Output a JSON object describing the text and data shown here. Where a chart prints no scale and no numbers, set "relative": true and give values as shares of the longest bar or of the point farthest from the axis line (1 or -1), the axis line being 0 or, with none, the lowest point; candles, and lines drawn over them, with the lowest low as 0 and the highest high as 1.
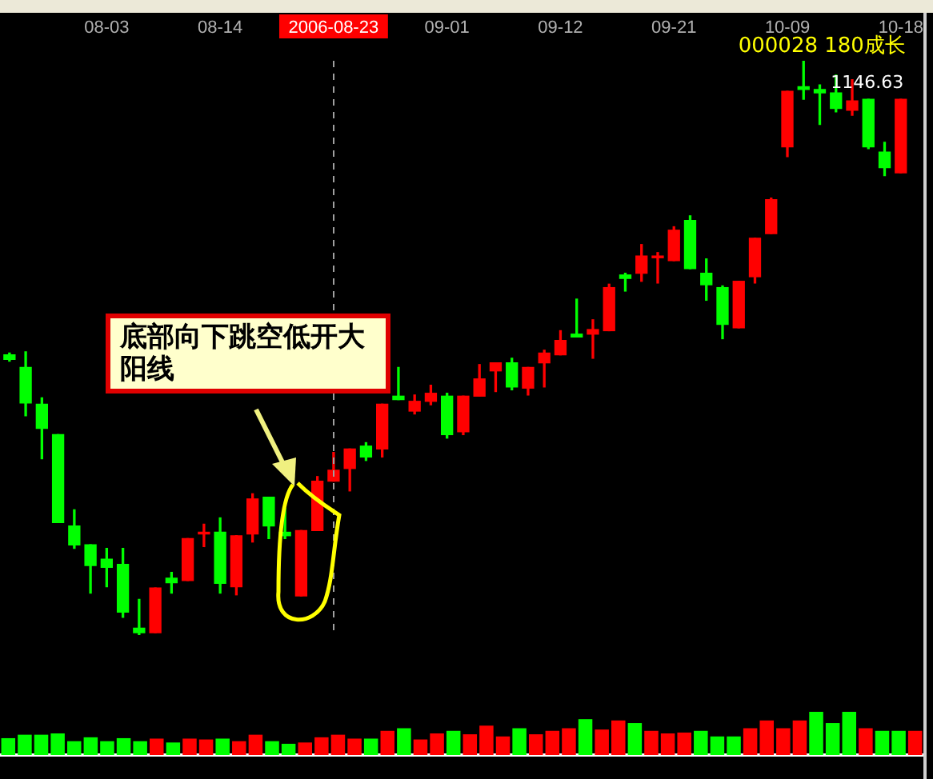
{
  "chart_data": [
    {
      "type": "candlestick",
      "title": "000028 180成长",
      "relative": true,
      "categories": [
        null,
        null,
        null,
        null,
        null,
        null,
        "08-03",
        null,
        null,
        null,
        null,
        null,
        null,
        "08-14",
        null,
        null,
        null,
        null,
        null,
        null,
        "2006-08-23",
        null,
        null,
        null,
        null,
        null,
        null,
        "09-01",
        null,
        null,
        null,
        null,
        null,
        null,
        "09-12",
        null,
        null,
        null,
        null,
        null,
        null,
        "09-21",
        null,
        null,
        null,
        null,
        null,
        null,
        "10-09",
        null,
        null,
        null,
        null,
        null,
        null,
        "10-18"
      ],
      "ohlc": [
        [
          0.488,
          0.491,
          0.477,
          0.48
        ],
        [
          0.466,
          0.493,
          0.382,
          0.404
        ],
        [
          0.402,
          0.413,
          0.307,
          0.36
        ],
        [
          0.349,
          0.349,
          0.196,
          0.196
        ],
        [
          0.19,
          0.218,
          0.151,
          0.157
        ],
        [
          0.157,
          0.157,
          0.073,
          0.121
        ],
        [
          0.132,
          0.151,
          0.084,
          0.118
        ],
        [
          0.123,
          0.151,
          0.031,
          0.04
        ],
        [
          0.012,
          0.062,
          0,
          0.004
        ],
        [
          0.004,
          0.082,
          0.004,
          0.082
        ],
        [
          0.099,
          0.109,
          0.073,
          0.091
        ],
        [
          0.095,
          0.168,
          0.095,
          0.168
        ],
        [
          0.176,
          0.193,
          0.154,
          0.179
        ],
        [
          0.179,
          0.204,
          0.073,
          0.09
        ],
        [
          0.084,
          0.173,
          0.07,
          0.173
        ],
        [
          0.176,
          0.246,
          0.162,
          0.237
        ],
        [
          0.24,
          0.24,
          0.168,
          0.19
        ],
        [
          0.179,
          0.221,
          0.168,
          0.173
        ],
        [
          0.068,
          0.182,
          0.068,
          0.182
        ],
        [
          0.182,
          0.276,
          0.182,
          0.268
        ],
        [
          0.268,
          0.318,
          0.268,
          0.287
        ],
        [
          0.29,
          0.324,
          0.251,
          0.324
        ],
        [
          0.329,
          0.335,
          0.304,
          0.31
        ],
        [
          0.324,
          0.402,
          0.31,
          0.402
        ],
        [
          0.416,
          0.466,
          0.41,
          0.41
        ],
        [
          0.39,
          0.418,
          0.385,
          0.407
        ],
        [
          0.407,
          0.435,
          0.401,
          0.421
        ],
        [
          0.416,
          0.421,
          0.343,
          0.349
        ],
        [
          0.354,
          0.416,
          0.349,
          0.416
        ],
        [
          0.416,
          0.471,
          0.416,
          0.446
        ],
        [
          0.46,
          0.474,
          0.424,
          0.474
        ],
        [
          0.474,
          0.482,
          0.427,
          0.432
        ],
        [
          0.43,
          0.466,
          0.418,
          0.466
        ],
        [
          0.474,
          0.496,
          0.432,
          0.491
        ],
        [
          0.488,
          0.53,
          0.488,
          0.513
        ],
        [
          0.524,
          0.585,
          0.519,
          0.519
        ],
        [
          0.524,
          0.549,
          0.482,
          0.532
        ],
        [
          0.53,
          0.611,
          0.53,
          0.605
        ],
        [
          0.627,
          0.63,
          0.599,
          0.621
        ],
        [
          0.63,
          0.68,
          0.616,
          0.66
        ],
        [
          0.657,
          0.666,
          0.613,
          0.66
        ],
        [
          0.652,
          0.711,
          0.652,
          0.705
        ],
        [
          0.722,
          0.73,
          0.638,
          0.638
        ],
        [
          0.63,
          0.655,
          0.583,
          0.61
        ],
        [
          0.605,
          0.608,
          0.516,
          0.541
        ],
        [
          0.535,
          0.616,
          0.535,
          0.616
        ],
        [
          0.624,
          0.691,
          0.613,
          0.691
        ],
        [
          0.699,
          0.761,
          0.699,
          0.758
        ],
        [
          0.85,
          0.947,
          0.833,
          0.947
        ],
        [
          0.955,
          1,
          0.933,
          0.95
        ],
        [
          0.95,
          0.958,
          0.889,
          0.944
        ],
        [
          0.944,
          0.975,
          0.911,
          0.917
        ],
        [
          0.914,
          0.967,
          0.905,
          0.93
        ],
        [
          0.933,
          0.933,
          0.847,
          0.85
        ],
        [
          0.841,
          0.858,
          0.8,
          0.814
        ],
        [
          0.805,
          0.933,
          0.805,
          0.933
        ]
      ],
      "colors": [
        "#00ff00",
        "#00ff00",
        "#00ff00",
        "#00ff00",
        "#00ff00",
        "#00ff00",
        "#00ff00",
        "#00ff00",
        "#00ff00",
        "#ff0000",
        "#00ff00",
        "#ff0000",
        "#ff0000",
        "#00ff00",
        "#ff0000",
        "#ff0000",
        "#00ff00",
        "#00ff00",
        "#ff0000",
        "#ff0000",
        "#ff0000",
        "#ff0000",
        "#00ff00",
        "#ff0000",
        "#00ff00",
        "#ff0000",
        "#ff0000",
        "#00ff00",
        "#ff0000",
        "#ff0000",
        "#ff0000",
        "#00ff00",
        "#ff0000",
        "#ff0000",
        "#ff0000",
        "#00ff00",
        "#ff0000",
        "#ff0000",
        "#00ff00",
        "#ff0000",
        "#ff0000",
        "#ff0000",
        "#00ff00",
        "#00ff00",
        "#00ff00",
        "#ff0000",
        "#ff0000",
        "#ff0000",
        "#ff0000",
        "#00ff00",
        "#00ff00",
        "#00ff00",
        "#ff0000",
        "#00ff00",
        "#00ff00",
        "#ff0000"
      ],
      "ref_lines": [
        {
          "axis": "x",
          "value": "2006-08-23",
          "color": "#a0a0a0",
          "line_style": "dashed"
        }
      ],
      "annotations": [
        "底部向下跳空低开大阳线",
        "1146.63"
      ]
    },
    {
      "type": "bar",
      "relative": true,
      "tick_labels": false,
      "categories": [
        null,
        null,
        null,
        null,
        null,
        null,
        null,
        null,
        null,
        null,
        null,
        null,
        null,
        null,
        null,
        null,
        null,
        null,
        null,
        null,
        null,
        null,
        null,
        null,
        null,
        null,
        null,
        null,
        null,
        null,
        null,
        null,
        null,
        null,
        null,
        null,
        null,
        null,
        null,
        null,
        null,
        null,
        null,
        null,
        null,
        null,
        null,
        null,
        null,
        null,
        null,
        null,
        null,
        null,
        null,
        null
      ],
      "values": [
        0.39,
        0.47,
        0.47,
        0.5,
        0.32,
        0.41,
        0.32,
        0.39,
        0.32,
        0.38,
        0.29,
        0.38,
        0.36,
        0.38,
        0.32,
        0.47,
        0.32,
        0.26,
        0.29,
        0.41,
        0.47,
        0.38,
        0.38,
        0.56,
        0.62,
        0.36,
        0.5,
        0.56,
        0.48,
        0.68,
        0.43,
        0.62,
        0.48,
        0.56,
        0.62,
        0.83,
        0.59,
        0.8,
        0.74,
        0.56,
        0.5,
        0.52,
        0.56,
        0.43,
        0.43,
        0.62,
        0.8,
        0.62,
        0.8,
        1,
        0.74,
        1,
        0.62,
        0.56,
        0.56,
        0.56
      ],
      "colors": [
        "#00ff00",
        "#00ff00",
        "#00ff00",
        "#00ff00",
        "#00ff00",
        "#00ff00",
        "#00ff00",
        "#00ff00",
        "#00ff00",
        "#ff0000",
        "#00ff00",
        "#ff0000",
        "#ff0000",
        "#00ff00",
        "#ff0000",
        "#ff0000",
        "#00ff00",
        "#00ff00",
        "#ff0000",
        "#ff0000",
        "#ff0000",
        "#ff0000",
        "#00ff00",
        "#ff0000",
        "#00ff00",
        "#ff0000",
        "#ff0000",
        "#00ff00",
        "#ff0000",
        "#ff0000",
        "#ff0000",
        "#00ff00",
        "#ff0000",
        "#ff0000",
        "#ff0000",
        "#00ff00",
        "#ff0000",
        "#ff0000",
        "#00ff00",
        "#ff0000",
        "#ff0000",
        "#ff0000",
        "#00ff00",
        "#00ff00",
        "#00ff00",
        "#ff0000",
        "#ff0000",
        "#ff0000",
        "#ff0000",
        "#00ff00",
        "#00ff00",
        "#00ff00",
        "#ff0000",
        "#00ff00",
        "#00ff00",
        "#ff0000"
      ]
    }
  ]
}
